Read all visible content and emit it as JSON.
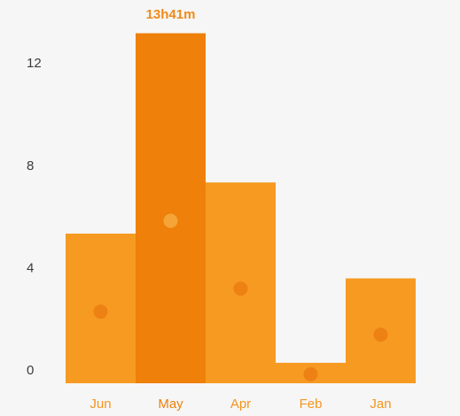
{
  "chart_data": {
    "type": "bar",
    "categories": [
      "Jun",
      "May",
      "Apr",
      "Feb",
      "Jan"
    ],
    "values": [
      5.85,
      13.683,
      7.85,
      0.8,
      4.1
    ],
    "markers": [
      2.8,
      6.35,
      3.7,
      0.35,
      1.9
    ],
    "y_ticks": [
      "0",
      "4",
      "8",
      "12"
    ],
    "ylim": [
      0,
      14
    ],
    "selected_index": 1,
    "selected_value_label": "13h41m",
    "title": "",
    "xlabel": "",
    "ylabel": "",
    "grid": false,
    "colors": {
      "bar": "#f69a22",
      "bar_selected": "#ef8009",
      "marker": "#ee8114",
      "marker_selected": "#f5a438",
      "background": "#f6f6f6"
    }
  }
}
